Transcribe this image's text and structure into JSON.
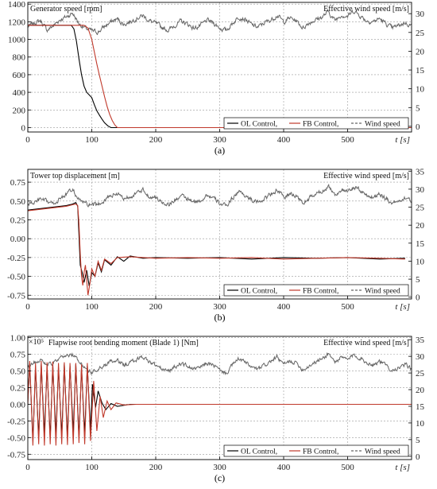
{
  "chart_data": [
    {
      "type": "line",
      "panel_label": "(a)",
      "left_title": "Generator speed [rpm]",
      "right_title": "Effective wind speed [m/s]",
      "xlabel": "t [s]",
      "xlim": [
        0,
        600
      ],
      "x_ticks": [
        0,
        100,
        200,
        300,
        400,
        500
      ],
      "ylim": [
        -50,
        1420
      ],
      "y_ticks": [
        0,
        200,
        400,
        600,
        800,
        1000,
        1200,
        1400
      ],
      "y2lim": [
        -1.5,
        33
      ],
      "y2_ticks": [
        0,
        5,
        10,
        15,
        20,
        25,
        30
      ],
      "grid": true,
      "legend_position": "bottom-right",
      "series": [
        {
          "name": "OL Control",
          "color": "#000000",
          "x": [
            0,
            60,
            68,
            72,
            76,
            80,
            84,
            88,
            92,
            96,
            100,
            104,
            108,
            112,
            116,
            120,
            125,
            130,
            140,
            600
          ],
          "values": [
            1160,
            1160,
            1160,
            1120,
            980,
            780,
            600,
            470,
            400,
            370,
            340,
            260,
            190,
            140,
            95,
            55,
            20,
            0,
            0,
            0
          ]
        },
        {
          "name": "FB Control",
          "color": "#c0392b",
          "x": [
            0,
            80,
            88,
            94,
            100,
            104,
            108,
            112,
            116,
            120,
            124,
            128,
            132,
            136,
            140,
            600
          ],
          "values": [
            1160,
            1160,
            1160,
            1130,
            1000,
            860,
            720,
            590,
            470,
            350,
            240,
            150,
            80,
            30,
            0,
            0
          ]
        },
        {
          "name": "Wind speed",
          "axis": "right",
          "color": "#666666",
          "x": [
            0,
            10,
            20,
            30,
            40,
            50,
            60,
            70,
            80,
            90,
            100,
            110,
            120,
            130,
            140,
            150,
            160,
            170,
            180,
            190,
            200,
            210,
            220,
            230,
            240,
            250,
            260,
            270,
            280,
            290,
            300,
            310,
            320,
            330,
            340,
            350,
            360,
            370,
            380,
            390,
            400,
            410,
            420,
            430,
            440,
            450,
            460,
            470,
            480,
            490,
            500,
            510,
            520,
            530,
            540,
            550,
            560,
            570,
            580,
            590,
            600
          ],
          "values": [
            26.5,
            27.5,
            28.2,
            25.6,
            26.8,
            28.4,
            29.1,
            30.2,
            27.3,
            26.1,
            25.4,
            25.1,
            26.6,
            27.8,
            28.6,
            27.1,
            27.9,
            28.8,
            29.5,
            28.1,
            27.4,
            26.3,
            25.6,
            26.9,
            28.0,
            27.2,
            26.1,
            26.8,
            28.2,
            27.6,
            26.2,
            25.5,
            27.4,
            29.2,
            28.5,
            27.0,
            26.4,
            27.6,
            28.3,
            29.6,
            27.8,
            28.9,
            28.1,
            26.2,
            27.6,
            28.4,
            29.1,
            30.5,
            28.2,
            29.7,
            29.3,
            30.8,
            29.4,
            28.1,
            27.9,
            28.7,
            27.3,
            26.1,
            26.9,
            27.6,
            26.8
          ]
        }
      ]
    },
    {
      "type": "line",
      "panel_label": "(b)",
      "left_title": "Tower top displacement [m]",
      "right_title": "Effective wind speed [m/s]",
      "xlabel": "t [s]",
      "xlim": [
        0,
        600
      ],
      "x_ticks": [
        0,
        100,
        200,
        300,
        400,
        500
      ],
      "ylim": [
        -0.8,
        0.92
      ],
      "y_ticks": [
        -0.75,
        -0.5,
        -0.25,
        0.0,
        0.25,
        0.5,
        0.75
      ],
      "y_tick_labels": [
        "-0.75",
        "-0.50",
        "-0.25",
        "0.00",
        "0.25",
        "0.50",
        "0.75"
      ],
      "y2lim": [
        -0.5,
        35.5
      ],
      "y2_ticks": [
        0,
        5,
        10,
        15,
        20,
        25,
        30,
        35
      ],
      "grid": true,
      "legend_position": "bottom-right",
      "series": [
        {
          "name": "OL Control",
          "color": "#000000",
          "x": [
            0,
            20,
            40,
            60,
            70,
            75,
            78,
            80,
            82,
            85,
            88,
            92,
            96,
            100,
            105,
            110,
            115,
            120,
            130,
            140,
            150,
            160,
            180,
            200,
            250,
            300,
            350,
            400,
            450,
            500,
            550,
            590
          ],
          "values": [
            0.38,
            0.4,
            0.42,
            0.44,
            0.46,
            0.48,
            0.43,
            0.05,
            -0.35,
            -0.45,
            -0.58,
            -0.42,
            -0.63,
            -0.45,
            -0.5,
            -0.32,
            -0.44,
            -0.28,
            -0.35,
            -0.24,
            -0.3,
            -0.23,
            -0.26,
            -0.25,
            -0.26,
            -0.25,
            -0.27,
            -0.25,
            -0.26,
            -0.25,
            -0.27,
            -0.26
          ]
        },
        {
          "name": "FB Control",
          "color": "#c0392b",
          "x": [
            0,
            20,
            40,
            60,
            70,
            75,
            78,
            80,
            82,
            84,
            86,
            88,
            90,
            92,
            94,
            97,
            100,
            105,
            110,
            115,
            120,
            130,
            140,
            160,
            200,
            250,
            300,
            350,
            400,
            450,
            500,
            550,
            590
          ],
          "values": [
            0.37,
            0.39,
            0.41,
            0.43,
            0.45,
            0.46,
            0.44,
            0.2,
            -0.2,
            -0.5,
            -0.62,
            -0.45,
            -0.35,
            -0.55,
            -0.75,
            -0.6,
            -0.4,
            -0.5,
            -0.3,
            -0.42,
            -0.27,
            -0.33,
            -0.25,
            -0.24,
            -0.26,
            -0.25,
            -0.26,
            -0.25,
            -0.27,
            -0.26,
            -0.25,
            -0.26,
            -0.27
          ]
        },
        {
          "name": "Wind speed",
          "axis": "right",
          "color": "#666666",
          "x": [
            0,
            10,
            20,
            30,
            40,
            50,
            60,
            70,
            80,
            90,
            100,
            110,
            120,
            130,
            140,
            150,
            160,
            170,
            180,
            190,
            200,
            210,
            220,
            230,
            240,
            250,
            260,
            270,
            280,
            290,
            300,
            310,
            320,
            330,
            340,
            350,
            360,
            370,
            380,
            390,
            400,
            410,
            420,
            430,
            440,
            450,
            460,
            470,
            480,
            490,
            500,
            510,
            520,
            530,
            540,
            550,
            560,
            570,
            580,
            590,
            600
          ],
          "values": [
            25.8,
            26.3,
            27.1,
            26.5,
            25.9,
            27.3,
            28.6,
            29.8,
            27.0,
            26.0,
            25.2,
            25.8,
            27.0,
            28.2,
            28.9,
            27.4,
            28.1,
            28.8,
            29.6,
            28.0,
            27.5,
            26.4,
            25.8,
            26.9,
            28.2,
            27.1,
            26.3,
            26.9,
            28.4,
            27.5,
            26.1,
            25.2,
            27.6,
            29.4,
            28.3,
            26.9,
            26.3,
            27.5,
            28.6,
            29.9,
            27.6,
            28.7,
            28.2,
            26.0,
            27.4,
            28.6,
            29.3,
            31.0,
            28.4,
            29.8,
            29.1,
            30.6,
            29.6,
            28.3,
            27.7,
            28.9,
            27.4,
            26.2,
            26.7,
            27.8,
            26.5
          ]
        }
      ]
    },
    {
      "type": "line",
      "panel_label": "(c)",
      "left_title": "Flapwise root bending moment (Blade 1) [Nm]",
      "scale_label": "×10⁵",
      "right_title": "Effective wind speed [m/s]",
      "xlabel": "t [s]",
      "xlim": [
        0,
        600
      ],
      "x_ticks": [
        0,
        100,
        200,
        300,
        400,
        500
      ],
      "ylim": [
        -0.83,
        1.02
      ],
      "y_ticks": [
        -0.75,
        -0.5,
        -0.25,
        0.0,
        0.25,
        0.5,
        0.75,
        1.0
      ],
      "y_tick_labels": [
        "-0.75",
        "-0.50",
        "-0.25",
        "0.00",
        "0.25",
        "0.50",
        "0.75",
        "1.00"
      ],
      "y2lim": [
        -1.0,
        36.0
      ],
      "y2_ticks": [
        0,
        5,
        10,
        15,
        20,
        25,
        30,
        35
      ],
      "grid": true,
      "legend_position": "bottom-right",
      "series": [
        {
          "name": "OL Control",
          "color": "#000000",
          "x": [
            0,
            3,
            8,
            12,
            17,
            21,
            26,
            30,
            35,
            39,
            44,
            48,
            53,
            57,
            62,
            66,
            71,
            75,
            80,
            84,
            89,
            93,
            98,
            101,
            106,
            110,
            116,
            122,
            130,
            140,
            160,
            200,
            300,
            400,
            500,
            600
          ],
          "values": [
            0.05,
            0.6,
            -0.55,
            0.55,
            -0.5,
            0.6,
            -0.45,
            0.55,
            -0.5,
            0.58,
            -0.45,
            0.55,
            -0.48,
            0.6,
            -0.5,
            0.58,
            -0.42,
            0.6,
            -0.5,
            0.55,
            -0.45,
            0.58,
            -0.4,
            0.3,
            -0.05,
            0.2,
            0.02,
            -0.08,
            0.01,
            -0.03,
            0.0,
            0.0,
            0.0,
            0.0,
            0.0,
            0.0
          ]
        },
        {
          "name": "FB Control",
          "color": "#c0392b",
          "x": [
            0,
            3,
            8,
            12,
            17,
            21,
            26,
            30,
            35,
            39,
            44,
            48,
            53,
            57,
            62,
            66,
            71,
            75,
            80,
            84,
            89,
            93,
            98,
            103,
            108,
            113,
            118,
            124,
            130,
            138,
            150,
            170,
            200,
            300,
            400,
            500,
            600
          ],
          "values": [
            0.0,
            0.65,
            -0.62,
            0.62,
            -0.6,
            0.65,
            -0.62,
            0.63,
            -0.6,
            0.64,
            -0.62,
            0.62,
            -0.6,
            0.63,
            -0.61,
            0.62,
            -0.6,
            0.62,
            -0.58,
            0.6,
            -0.6,
            0.62,
            -0.55,
            0.35,
            -0.4,
            0.12,
            -0.2,
            0.05,
            -0.08,
            0.02,
            -0.01,
            0.0,
            0.0,
            0.0,
            0.0,
            0.0,
            0.0
          ]
        },
        {
          "name": "Wind speed",
          "axis": "right",
          "color": "#666666",
          "x": [
            0,
            10,
            20,
            30,
            40,
            50,
            60,
            70,
            80,
            90,
            100,
            110,
            120,
            130,
            140,
            150,
            160,
            170,
            180,
            190,
            200,
            210,
            220,
            230,
            240,
            250,
            260,
            270,
            280,
            290,
            300,
            310,
            320,
            330,
            340,
            350,
            360,
            370,
            380,
            390,
            400,
            410,
            420,
            430,
            440,
            450,
            460,
            470,
            480,
            490,
            500,
            510,
            520,
            530,
            540,
            550,
            560,
            570,
            580,
            590,
            600
          ],
          "values": [
            27.0,
            28.2,
            29.1,
            27.4,
            28.0,
            29.3,
            30.0,
            30.6,
            28.6,
            26.5,
            25.2,
            25.9,
            27.3,
            28.4,
            28.6,
            27.3,
            28.2,
            29.0,
            29.9,
            28.4,
            27.3,
            26.1,
            25.5,
            26.8,
            28.0,
            27.0,
            26.0,
            26.7,
            28.0,
            27.3,
            25.8,
            24.9,
            27.4,
            29.3,
            28.2,
            26.7,
            26.0,
            27.3,
            28.5,
            29.7,
            27.5,
            28.5,
            28.0,
            26.0,
            27.2,
            28.4,
            29.2,
            30.9,
            28.3,
            29.6,
            29.0,
            30.4,
            29.5,
            28.1,
            27.5,
            28.6,
            27.2,
            25.9,
            26.5,
            27.4,
            26.4
          ]
        }
      ]
    }
  ]
}
